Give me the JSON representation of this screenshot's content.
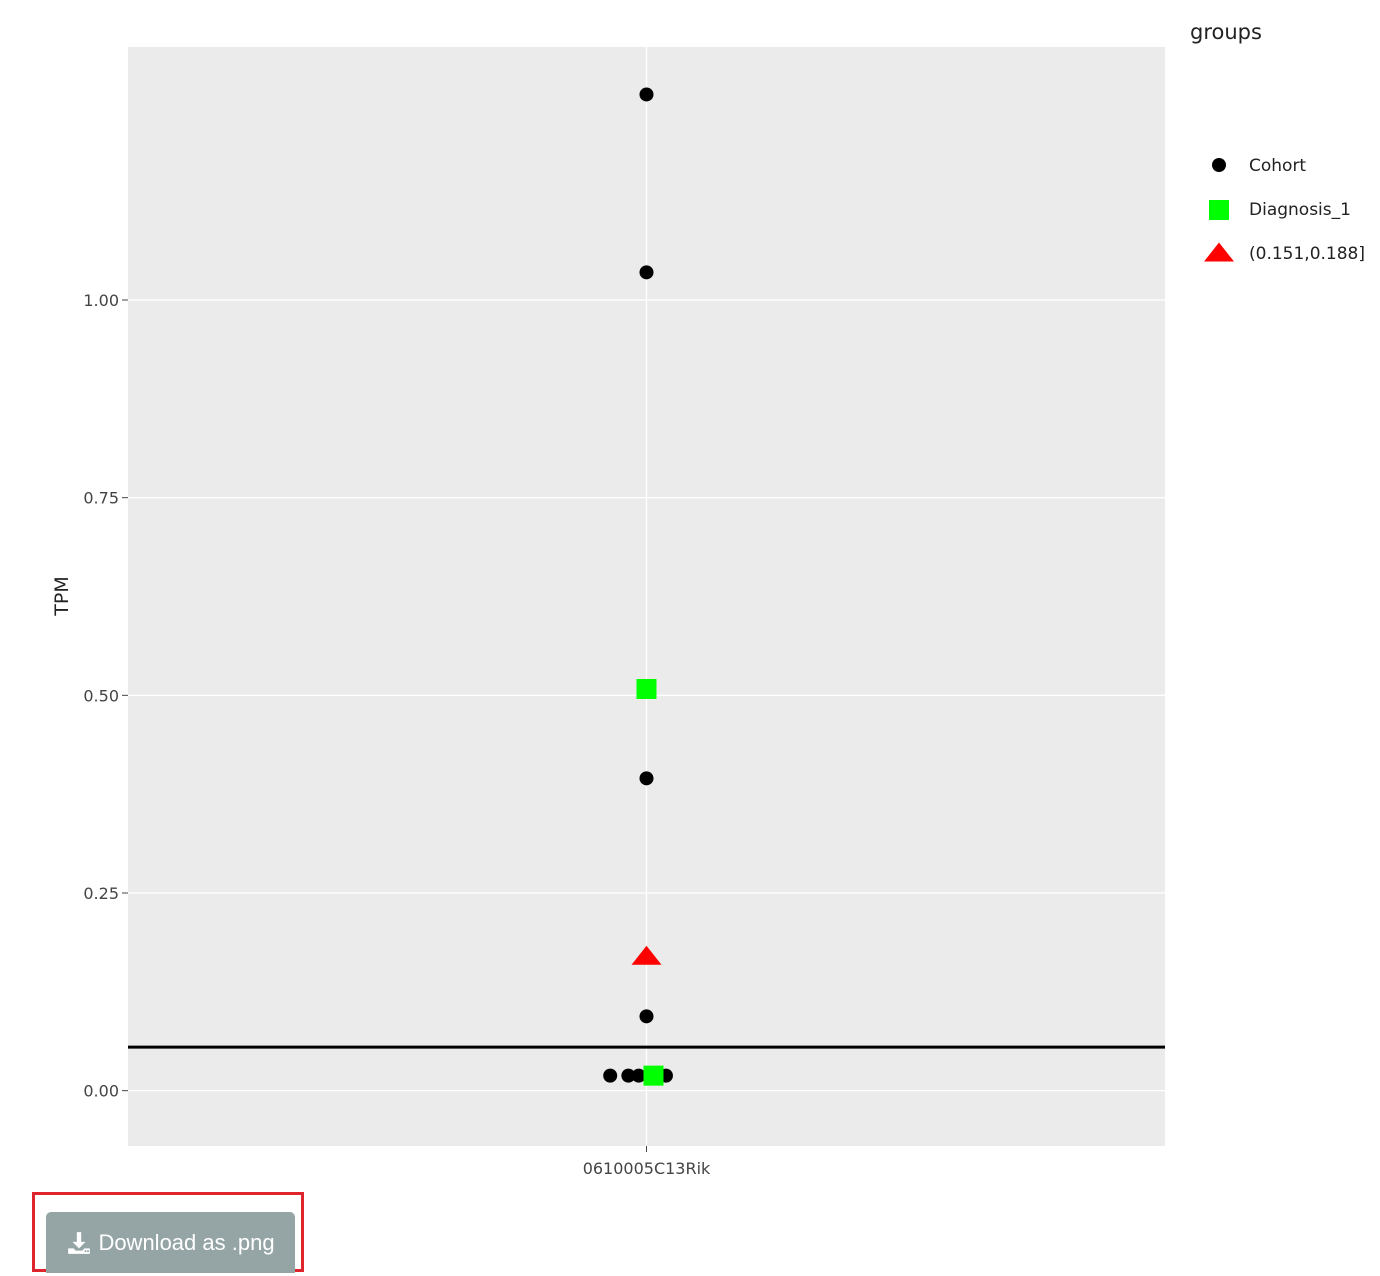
{
  "download": {
    "label": "Download as .png",
    "icon": "download-icon"
  },
  "colors": {
    "panel": "#ebebeb",
    "grid": "#ffffff",
    "cohort": "#000000",
    "diagnosis": "#00ff00",
    "range": "#ff0000",
    "hline": "#000000"
  },
  "chart_data": {
    "type": "scatter",
    "title": "",
    "xlabel": "",
    "ylabel": "TPM",
    "categories": [
      "0610005C13Rik"
    ],
    "ylim": [
      -0.07,
      1.32
    ],
    "yticks": [
      0.0,
      0.25,
      0.5,
      0.75,
      1.0
    ],
    "ytick_labels": [
      "0.00",
      "0.25",
      "0.50",
      "0.75",
      "1.00"
    ],
    "grid": true,
    "hline": 0.055,
    "legend": {
      "title": "groups",
      "position": "top-right",
      "entries": [
        {
          "label": "Cohort",
          "shape": "circle",
          "color": "#000000"
        },
        {
          "label": "Diagnosis_1",
          "shape": "square",
          "color": "#00ff00"
        },
        {
          "label": "(0.151,0.188]",
          "shape": "triangle",
          "color": "#ff0000"
        }
      ]
    },
    "series": [
      {
        "name": "Cohort",
        "shape": "circle",
        "color": "#000000",
        "points": [
          {
            "x": 0,
            "jitter": 0.0,
            "y": 1.26
          },
          {
            "x": 0,
            "jitter": 0.0,
            "y": 1.035
          },
          {
            "x": 0,
            "jitter": 0.0,
            "y": 0.395
          },
          {
            "x": 0,
            "jitter": 0.0,
            "y": 0.094
          },
          {
            "x": 0,
            "jitter": -0.14,
            "y": 0.019
          },
          {
            "x": 0,
            "jitter": -0.07,
            "y": 0.019
          },
          {
            "x": 0,
            "jitter": -0.03,
            "y": 0.019
          },
          {
            "x": 0,
            "jitter": 0.075,
            "y": 0.019
          }
        ]
      },
      {
        "name": "Diagnosis_1",
        "shape": "square",
        "color": "#00ff00",
        "points": [
          {
            "x": 0,
            "jitter": 0.0,
            "y": 0.508
          },
          {
            "x": 0,
            "jitter": 0.027,
            "y": 0.019
          }
        ]
      },
      {
        "name": "(0.151,0.188]",
        "shape": "triangle",
        "color": "#ff0000",
        "points": [
          {
            "x": 0,
            "jitter": 0.0,
            "y": 0.17
          }
        ]
      }
    ]
  }
}
